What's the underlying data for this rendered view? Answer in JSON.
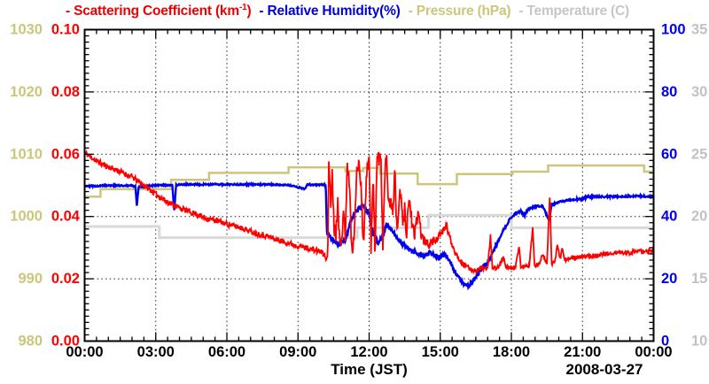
{
  "chart_data": {
    "type": "line",
    "date_label": "2008-03-27",
    "legend": [
      {
        "text": "- Scattering Coefficient (km",
        "sup": "-1",
        "tail": ")",
        "color": "#ee0000"
      },
      {
        "text": "- Relative Humidity(%)",
        "sup": "",
        "tail": "",
        "color": "#0000dd"
      },
      {
        "text": "- Pressure (hPa)",
        "sup": "",
        "tail": "",
        "color": "#ccc67c"
      },
      {
        "text": "- Temperature (C)",
        "sup": "",
        "tail": "",
        "color": "#c6c6c6"
      }
    ],
    "x_axis": {
      "label": "Time (JST)",
      "tick_labels": [
        "00:00",
        "03:00",
        "06:00",
        "09:00",
        "12:00",
        "15:00",
        "18:00",
        "21:00",
        "00:00"
      ],
      "range_hours": [
        0,
        24
      ],
      "major_every_hours": 3,
      "minor_every_hours": 0.5,
      "grid_hours": [
        3,
        6,
        9,
        12,
        15,
        18,
        21
      ]
    },
    "y_axes": [
      {
        "id": "pressure",
        "side": "left",
        "color": "#ccc67c",
        "range": [
          980,
          1030
        ],
        "tick_labels": [
          "1030",
          "1020",
          "1010",
          "1000",
          "990",
          "980"
        ]
      },
      {
        "id": "scattering",
        "side": "left",
        "color": "#ff0000",
        "range": [
          0,
          0.1
        ],
        "tick_labels": [
          "0.10",
          "0.08",
          "0.06",
          "0.04",
          "0.02",
          "0.00"
        ],
        "grid_values": [
          0.08,
          0.06,
          0.04,
          0.02
        ]
      },
      {
        "id": "humidity",
        "side": "right",
        "color": "#0000ee",
        "range": [
          0,
          100
        ],
        "tick_labels": [
          "100",
          "80",
          "60",
          "40",
          "20",
          "0"
        ]
      },
      {
        "id": "temperature",
        "side": "right",
        "color": "#c2c2c2",
        "range": [
          10,
          35
        ],
        "tick_labels": [
          "35",
          "30",
          "25",
          "20",
          "15",
          "10"
        ]
      }
    ],
    "series": [
      {
        "id": "temperature",
        "axis": "temperature",
        "color": "#d9d9d9",
        "width": 3,
        "step": true,
        "points": [
          [
            0,
            19.2
          ],
          [
            3.15,
            18.3
          ],
          [
            11.5,
            19.1
          ],
          [
            14.5,
            20.1
          ],
          [
            18.0,
            19.1
          ],
          [
            24,
            19.1
          ]
        ]
      },
      {
        "id": "pressure",
        "axis": "pressure",
        "color": "#ccc67c",
        "width": 2.5,
        "step": true,
        "points": [
          [
            0,
            1003.2
          ],
          [
            0.67,
            1004.4
          ],
          [
            3.65,
            1005.9
          ],
          [
            5.25,
            1007.0
          ],
          [
            8.6,
            1007.9
          ],
          [
            11.0,
            1007.3
          ],
          [
            11.75,
            1007.8
          ],
          [
            12.45,
            1006.9
          ],
          [
            14.05,
            1005.2
          ],
          [
            15.7,
            1006.8
          ],
          [
            18.05,
            1007.2
          ],
          [
            19.55,
            1008.2
          ],
          [
            23.6,
            1007.2
          ],
          [
            24,
            1007.2
          ]
        ]
      },
      {
        "id": "humidity",
        "axis": "humidity",
        "color": "#0000ee",
        "width": 2.4,
        "seed": 29,
        "noise": [
          [
            0,
            0.25
          ],
          [
            10.1,
            0.25
          ],
          [
            10.3,
            0.8
          ],
          [
            16.9,
            0.8
          ],
          [
            17.5,
            0.5
          ],
          [
            18.5,
            0.35
          ],
          [
            24,
            0.3
          ]
        ],
        "points": [
          [
            0,
            49.8
          ],
          [
            0.5,
            49.8
          ],
          [
            1.0,
            50.0
          ],
          [
            1.5,
            49.9
          ],
          [
            2.0,
            49.9
          ],
          [
            2.14,
            49.6
          ],
          [
            2.2,
            43.5
          ],
          [
            2.28,
            49.6
          ],
          [
            3.0,
            50.0
          ],
          [
            3.7,
            50.0
          ],
          [
            3.78,
            41.8
          ],
          [
            3.86,
            50.2
          ],
          [
            5,
            50.3
          ],
          [
            7,
            50.3
          ],
          [
            8.5,
            50.2
          ],
          [
            9.3,
            48.9
          ],
          [
            9.4,
            50.2
          ],
          [
            10.0,
            50.2
          ],
          [
            10.17,
            50.2
          ],
          [
            10.22,
            35.0
          ],
          [
            10.4,
            33.0
          ],
          [
            10.6,
            31.5
          ],
          [
            10.75,
            31.0
          ],
          [
            11.0,
            32.5
          ],
          [
            11.2,
            38.0
          ],
          [
            11.4,
            41.5
          ],
          [
            11.6,
            43.0
          ],
          [
            11.75,
            43.2
          ],
          [
            12.0,
            41.0
          ],
          [
            12.1,
            36.0
          ],
          [
            12.25,
            33.5
          ],
          [
            12.4,
            31.5
          ],
          [
            12.6,
            34.0
          ],
          [
            12.75,
            37.5
          ],
          [
            12.9,
            36.0
          ],
          [
            13.1,
            34.0
          ],
          [
            13.3,
            32.0
          ],
          [
            13.5,
            30.5
          ],
          [
            13.7,
            29.5
          ],
          [
            14.0,
            28.3
          ],
          [
            14.2,
            27.2
          ],
          [
            14.4,
            28.0
          ],
          [
            14.6,
            28.3
          ],
          [
            14.8,
            27.3
          ],
          [
            15.0,
            26.8
          ],
          [
            15.2,
            27.8
          ],
          [
            15.4,
            25.5
          ],
          [
            15.6,
            22.5
          ],
          [
            15.8,
            20.0
          ],
          [
            16.0,
            18.6
          ],
          [
            16.2,
            17.6
          ],
          [
            16.35,
            19.0
          ],
          [
            16.5,
            20.5
          ],
          [
            16.7,
            22.5
          ],
          [
            17.0,
            25.3
          ],
          [
            17.2,
            28.0
          ],
          [
            17.4,
            31.5
          ],
          [
            17.6,
            34.5
          ],
          [
            17.8,
            37.5
          ],
          [
            18.0,
            39.8
          ],
          [
            18.2,
            41.0
          ],
          [
            18.4,
            41.8
          ],
          [
            18.55,
            40.2
          ],
          [
            18.7,
            42.3
          ],
          [
            19.0,
            43.2
          ],
          [
            19.3,
            43.5
          ],
          [
            19.6,
            38.8
          ],
          [
            19.7,
            43.8
          ],
          [
            19.9,
            44.3
          ],
          [
            20.1,
            44.8
          ],
          [
            20.3,
            45.0
          ],
          [
            20.5,
            45.3
          ],
          [
            21.0,
            45.6
          ],
          [
            21.2,
            46.3
          ],
          [
            22.0,
            46.4
          ],
          [
            23.0,
            46.5
          ],
          [
            24,
            46.5
          ]
        ]
      },
      {
        "id": "scattering",
        "axis": "scattering",
        "color": "#ff0000",
        "width": 1.8,
        "seed": 11,
        "noise": [
          [
            0,
            0.0009
          ],
          [
            10.2,
            0.0009
          ],
          [
            10.33,
            0.0028
          ],
          [
            13.9,
            0.0028
          ],
          [
            14.3,
            0.0016
          ],
          [
            15.5,
            0.001
          ],
          [
            16.2,
            0.0007
          ],
          [
            24,
            0.0007
          ]
        ],
        "points": [
          [
            0,
            0.0605
          ],
          [
            0.25,
            0.0592
          ],
          [
            0.5,
            0.0578
          ],
          [
            0.75,
            0.0568
          ],
          [
            1,
            0.056
          ],
          [
            1.25,
            0.0552
          ],
          [
            1.5,
            0.0545
          ],
          [
            1.75,
            0.0535
          ],
          [
            2,
            0.0527
          ],
          [
            2.25,
            0.0513
          ],
          [
            2.5,
            0.05
          ],
          [
            2.75,
            0.0487
          ],
          [
            3,
            0.0472
          ],
          [
            3.25,
            0.0458
          ],
          [
            3.5,
            0.0447
          ],
          [
            3.75,
            0.0437
          ],
          [
            4,
            0.0428
          ],
          [
            4.25,
            0.042
          ],
          [
            4.5,
            0.0413
          ],
          [
            4.75,
            0.0407
          ],
          [
            5,
            0.0398
          ],
          [
            5.25,
            0.0392
          ],
          [
            5.5,
            0.0388
          ],
          [
            5.75,
            0.0382
          ],
          [
            6,
            0.0376
          ],
          [
            6.25,
            0.0371
          ],
          [
            6.5,
            0.0366
          ],
          [
            6.75,
            0.036
          ],
          [
            7,
            0.0352
          ],
          [
            7.25,
            0.0346
          ],
          [
            7.5,
            0.0341
          ],
          [
            7.75,
            0.0336
          ],
          [
            8,
            0.0328
          ],
          [
            8.25,
            0.0322
          ],
          [
            8.5,
            0.0317
          ],
          [
            8.75,
            0.0311
          ],
          [
            9,
            0.0306
          ],
          [
            9.25,
            0.0301
          ],
          [
            9.5,
            0.0296
          ],
          [
            9.75,
            0.0291
          ],
          [
            10,
            0.0286
          ],
          [
            10.15,
            0.0272
          ],
          [
            10.25,
            0.0258
          ],
          [
            10.3,
            0.058
          ],
          [
            10.38,
            0.045
          ],
          [
            10.45,
            0.054
          ],
          [
            10.52,
            0.0372
          ],
          [
            10.6,
            0.034
          ],
          [
            10.68,
            0.048
          ],
          [
            10.75,
            0.031
          ],
          [
            10.83,
            0.03
          ],
          [
            10.92,
            0.044
          ],
          [
            11.0,
            0.034
          ],
          [
            11.08,
            0.056
          ],
          [
            11.17,
            0.052
          ],
          [
            11.25,
            0.031
          ],
          [
            11.33,
            0.029
          ],
          [
            11.42,
            0.044
          ],
          [
            11.5,
            0.056
          ],
          [
            11.58,
            0.0575
          ],
          [
            11.67,
            0.05
          ],
          [
            11.75,
            0.029
          ],
          [
            11.83,
            0.044
          ],
          [
            11.92,
            0.057
          ],
          [
            12.0,
            0.058
          ],
          [
            12.08,
            0.03
          ],
          [
            12.17,
            0.052
          ],
          [
            12.25,
            0.0285
          ],
          [
            12.33,
            0.0585
          ],
          [
            12.42,
            0.059
          ],
          [
            12.5,
            0.058
          ],
          [
            12.58,
            0.031
          ],
          [
            12.67,
            0.057
          ],
          [
            12.75,
            0.058
          ],
          [
            12.83,
            0.043
          ],
          [
            12.92,
            0.046
          ],
          [
            13.0,
            0.0405
          ],
          [
            13.08,
            0.055
          ],
          [
            13.17,
            0.035
          ],
          [
            13.25,
            0.043
          ],
          [
            13.33,
            0.048
          ],
          [
            13.42,
            0.037
          ],
          [
            13.5,
            0.042
          ],
          [
            13.58,
            0.035
          ],
          [
            13.67,
            0.045
          ],
          [
            13.75,
            0.043
          ],
          [
            13.83,
            0.0355
          ],
          [
            13.92,
            0.0335
          ],
          [
            14.0,
            0.038
          ],
          [
            14.08,
            0.042
          ],
          [
            14.17,
            0.0355
          ],
          [
            14.25,
            0.033
          ],
          [
            14.33,
            0.032
          ],
          [
            14.5,
            0.031
          ],
          [
            14.67,
            0.0318
          ],
          [
            14.83,
            0.0328
          ],
          [
            15.0,
            0.034
          ],
          [
            15.17,
            0.036
          ],
          [
            15.25,
            0.0375
          ],
          [
            15.33,
            0.035
          ],
          [
            15.5,
            0.031
          ],
          [
            15.67,
            0.028
          ],
          [
            15.83,
            0.026
          ],
          [
            16.0,
            0.0245
          ],
          [
            16.25,
            0.0232
          ],
          [
            16.5,
            0.0226
          ],
          [
            16.75,
            0.0236
          ],
          [
            17.0,
            0.023
          ],
          [
            17.12,
            0.034
          ],
          [
            17.2,
            0.023
          ],
          [
            17.33,
            0.0235
          ],
          [
            17.5,
            0.024
          ],
          [
            17.65,
            0.0272
          ],
          [
            17.75,
            0.0238
          ],
          [
            18.0,
            0.0232
          ],
          [
            18.17,
            0.0238
          ],
          [
            18.33,
            0.03
          ],
          [
            18.4,
            0.0236
          ],
          [
            18.58,
            0.024
          ],
          [
            18.75,
            0.0242
          ],
          [
            18.9,
            0.036
          ],
          [
            18.98,
            0.0242
          ],
          [
            19.17,
            0.0246
          ],
          [
            19.33,
            0.028
          ],
          [
            19.5,
            0.025
          ],
          [
            19.62,
            0.0462
          ],
          [
            19.7,
            0.025
          ],
          [
            19.83,
            0.0255
          ],
          [
            19.95,
            0.031
          ],
          [
            20.05,
            0.026
          ],
          [
            20.15,
            0.0305
          ],
          [
            20.25,
            0.0262
          ],
          [
            20.5,
            0.0266
          ],
          [
            21.0,
            0.027
          ],
          [
            21.5,
            0.0275
          ],
          [
            22.0,
            0.028
          ],
          [
            22.5,
            0.0284
          ],
          [
            23.0,
            0.0284
          ],
          [
            23.5,
            0.0288
          ],
          [
            24,
            0.029
          ]
        ]
      }
    ]
  }
}
